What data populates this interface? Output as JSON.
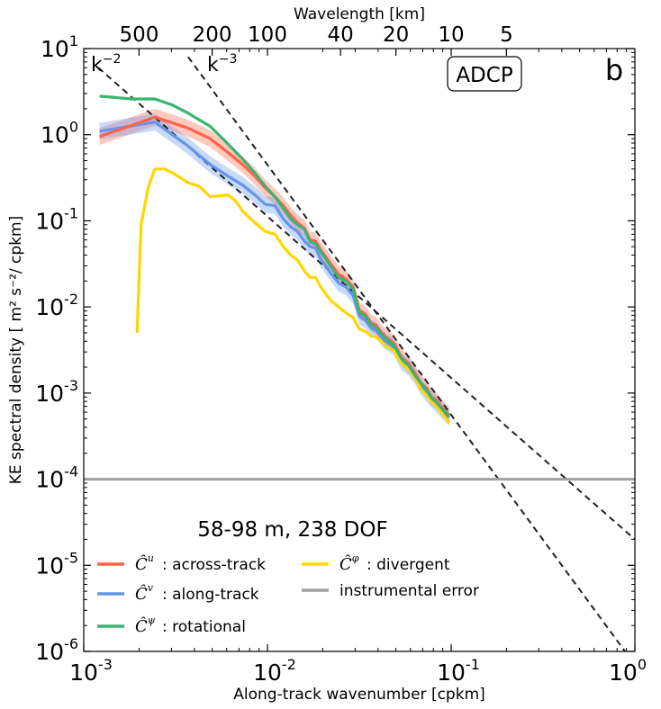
{
  "chart_data": {
    "type": "line",
    "title": "",
    "panel_label": "b",
    "annotation_box": "ADCP",
    "subtitle": "58-98 m, 238 DOF",
    "xlabel": "Along-track wavenumber [cpkm]",
    "ylabel": "KE spectral density [ m² s⁻²/ cpkm]",
    "top_xlabel": "Wavelength [km]",
    "x_scale": "log",
    "y_scale": "log",
    "xlim": [
      0.001,
      1
    ],
    "ylim": [
      1e-06,
      10
    ],
    "x_ticks": [
      {
        "value": 0.001,
        "base": "10",
        "exp": "-3"
      },
      {
        "value": 0.01,
        "base": "10",
        "exp": "-2"
      },
      {
        "value": 0.1,
        "base": "10",
        "exp": "-1"
      },
      {
        "value": 1,
        "base": "10",
        "exp": "0"
      }
    ],
    "y_ticks": [
      {
        "value": 10,
        "base": "10",
        "exp": "1"
      },
      {
        "value": 1,
        "base": "10",
        "exp": "0"
      },
      {
        "value": 0.1,
        "base": "10",
        "exp": "-1"
      },
      {
        "value": 0.01,
        "base": "10",
        "exp": "-2"
      },
      {
        "value": 0.001,
        "base": "10",
        "exp": "-3"
      },
      {
        "value": 0.0001,
        "base": "10",
        "exp": "-4"
      },
      {
        "value": 1e-05,
        "base": "10",
        "exp": "-5"
      },
      {
        "value": 1e-06,
        "base": "10",
        "exp": "-6"
      }
    ],
    "top_ticks": [
      {
        "value": 500,
        "label": "500"
      },
      {
        "value": 200,
        "label": "200"
      },
      {
        "value": 100,
        "label": "100"
      },
      {
        "value": 40,
        "label": "40"
      },
      {
        "value": 20,
        "label": "20"
      },
      {
        "value": 10,
        "label": "10"
      },
      {
        "value": 5,
        "label": "5"
      }
    ],
    "reference_lines": [
      {
        "label": "k",
        "exp": "−2",
        "x": [
          0.0012,
          1.0
        ],
        "y": [
          6.0,
          2e-05
        ],
        "style": "dashed"
      },
      {
        "label": "k",
        "exp": "−3",
        "x": [
          0.0037,
          0.9
        ],
        "y": [
          8.0,
          9.5e-07
        ],
        "style": "dashed"
      }
    ],
    "noise_floor": {
      "name": "instrumental error",
      "y": 0.0001,
      "color": "#a0a0a0"
    },
    "series": [
      {
        "name": "across-track",
        "symbol": "u",
        "color": "#ff6347",
        "band_color": "#ff6347",
        "x": [
          0.00122,
          0.00244,
          0.00366,
          0.00488,
          0.0061,
          0.00732,
          0.00854,
          0.00976,
          0.011,
          0.0122,
          0.0134,
          0.0146,
          0.0159,
          0.0171,
          0.0183,
          0.0195,
          0.022,
          0.0244,
          0.0268,
          0.0293,
          0.0317,
          0.0342,
          0.0366,
          0.0391,
          0.0415,
          0.0439,
          0.0464,
          0.0488,
          0.0537,
          0.0586,
          0.0635,
          0.0684,
          0.0732,
          0.0781,
          0.083,
          0.0879,
          0.0928,
          0.0977
        ],
        "y": [
          0.95,
          1.6,
          1.2,
          0.9,
          0.62,
          0.45,
          0.33,
          0.24,
          0.19,
          0.15,
          0.115,
          0.095,
          0.082,
          0.06,
          0.058,
          0.046,
          0.032,
          0.024,
          0.021,
          0.017,
          0.009,
          0.0082,
          0.0065,
          0.0061,
          0.0051,
          0.0045,
          0.0041,
          0.0038,
          0.0026,
          0.0022,
          0.0017,
          0.0013,
          0.00115,
          0.0009,
          0.00082,
          0.0007,
          0.00062,
          0.00055
        ],
        "band_factor": 1.25
      },
      {
        "name": "along-track",
        "symbol": "v",
        "color": "#6495ed",
        "band_color": "#6495ed",
        "x": [
          0.00122,
          0.00244,
          0.00366,
          0.00488,
          0.0061,
          0.00732,
          0.00854,
          0.00976,
          0.011,
          0.0122,
          0.0134,
          0.0146,
          0.0159,
          0.0171,
          0.0183,
          0.0195,
          0.022,
          0.0244,
          0.0268,
          0.0293,
          0.0317,
          0.0342,
          0.0366,
          0.0391,
          0.0415,
          0.0439,
          0.0464,
          0.0488,
          0.0537,
          0.0586,
          0.0635,
          0.0684,
          0.0732,
          0.0781,
          0.083,
          0.0879,
          0.0928,
          0.0977
        ],
        "y": [
          1.1,
          1.4,
          0.75,
          0.45,
          0.33,
          0.26,
          0.2,
          0.155,
          0.15,
          0.105,
          0.085,
          0.075,
          0.058,
          0.05,
          0.048,
          0.036,
          0.025,
          0.019,
          0.017,
          0.0135,
          0.0078,
          0.007,
          0.0057,
          0.0053,
          0.0045,
          0.004,
          0.0037,
          0.0034,
          0.0023,
          0.002,
          0.0016,
          0.0012,
          0.001,
          0.00085,
          0.00075,
          0.00066,
          0.00058,
          0.00052
        ],
        "band_factor": 1.25
      },
      {
        "name": "rotational",
        "symbol": "ψ",
        "color": "#3cb371",
        "x": [
          0.00122,
          0.00183,
          0.00244,
          0.00305,
          0.00366,
          0.00488,
          0.0061,
          0.00732,
          0.00854,
          0.00976,
          0.011,
          0.0122,
          0.0134,
          0.0146,
          0.0159,
          0.0171,
          0.0183,
          0.0195,
          0.022,
          0.0244,
          0.0268,
          0.0293,
          0.0317,
          0.0342,
          0.0366,
          0.0391,
          0.0415,
          0.0439,
          0.0464,
          0.0488,
          0.0537,
          0.0586,
          0.0635,
          0.0684,
          0.0732,
          0.0781,
          0.083,
          0.0879,
          0.0928,
          0.0977
        ],
        "y": [
          2.8,
          2.6,
          2.6,
          2.2,
          1.8,
          1.25,
          0.78,
          0.52,
          0.36,
          0.25,
          0.19,
          0.14,
          0.105,
          0.09,
          0.08,
          0.057,
          0.054,
          0.044,
          0.03,
          0.022,
          0.02,
          0.016,
          0.0085,
          0.0078,
          0.0062,
          0.0058,
          0.0049,
          0.0043,
          0.0039,
          0.0036,
          0.0025,
          0.0021,
          0.0016,
          0.0013,
          0.0011,
          0.00088,
          0.00078,
          0.00068,
          0.0006,
          0.00053
        ]
      },
      {
        "name": "divergent",
        "symbol": "φ",
        "color": "#ffd700",
        "x": [
          0.00195,
          0.00205,
          0.00225,
          0.00244,
          0.00275,
          0.00305,
          0.00366,
          0.00427,
          0.00488,
          0.0061,
          0.00671,
          0.00732,
          0.00854,
          0.00976,
          0.011,
          0.0122,
          0.0134,
          0.0146,
          0.0159,
          0.0171,
          0.0183,
          0.0195,
          0.022,
          0.0244,
          0.0268,
          0.0293,
          0.0317,
          0.0342,
          0.0366,
          0.0391,
          0.0415,
          0.0439,
          0.0464,
          0.0488,
          0.0537,
          0.0586,
          0.0635,
          0.0684,
          0.0732,
          0.0781,
          0.083,
          0.0879,
          0.0928,
          0.0977
        ],
        "y": [
          0.005,
          0.09,
          0.25,
          0.4,
          0.4,
          0.36,
          0.28,
          0.25,
          0.19,
          0.2,
          0.17,
          0.13,
          0.095,
          0.075,
          0.07,
          0.05,
          0.04,
          0.035,
          0.026,
          0.022,
          0.022,
          0.017,
          0.012,
          0.01,
          0.0085,
          0.0075,
          0.0055,
          0.0052,
          0.0046,
          0.0045,
          0.004,
          0.0035,
          0.0033,
          0.0031,
          0.0022,
          0.0019,
          0.0015,
          0.0011,
          0.00095,
          0.0008,
          0.0007,
          0.0006,
          0.00052,
          0.00045
        ]
      }
    ],
    "legend": {
      "placement": "lower-left",
      "entries": [
        {
          "symbol": "u",
          "text": ": across-track",
          "color": "#ff6347"
        },
        {
          "symbol": "v",
          "text": ": along-track",
          "color": "#6495ed"
        },
        {
          "symbol": "ψ",
          "text": ": rotational",
          "color": "#3cb371"
        },
        {
          "symbol": "φ",
          "text": ": divergent",
          "color": "#ffd700"
        },
        {
          "symbol": "",
          "text": "instrumental error",
          "color": "#a0a0a0"
        }
      ]
    }
  }
}
